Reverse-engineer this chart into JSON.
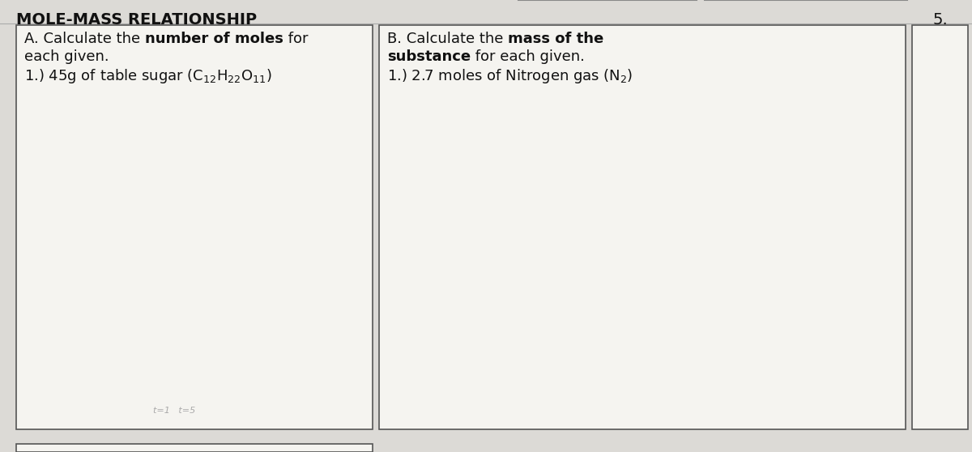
{
  "title": "MOLE-MASS RELATIONSHIP",
  "title_fontsize": 14,
  "title_fontweight": "bold",
  "bg_color": "#dcdad6",
  "box_color": "#f5f4f0",
  "box_edge_color": "#555555",
  "number_label": "5.",
  "panel_A_line1_normal": "A. Calculate the ",
  "panel_A_line1_bold": "number of moles",
  "panel_A_line1_normal2": " for",
  "panel_A_line2": "each given.",
  "panel_A_line3": "1.) 45g of table sugar (C$_{12}$H$_{22}$O$_{11}$)",
  "panel_B_line1_normal": "B. Calculate the ",
  "panel_B_line1_bold": "mass of the",
  "panel_B_line2_bold": "substance",
  "panel_B_line2_normal": " for each given.",
  "panel_B_line3": "1.) 2.7 moles of Nitrogen gas (N$_2$)",
  "text_fontsize": 13,
  "small_fontsize": 8,
  "scribble_text": "t=1   t=5"
}
